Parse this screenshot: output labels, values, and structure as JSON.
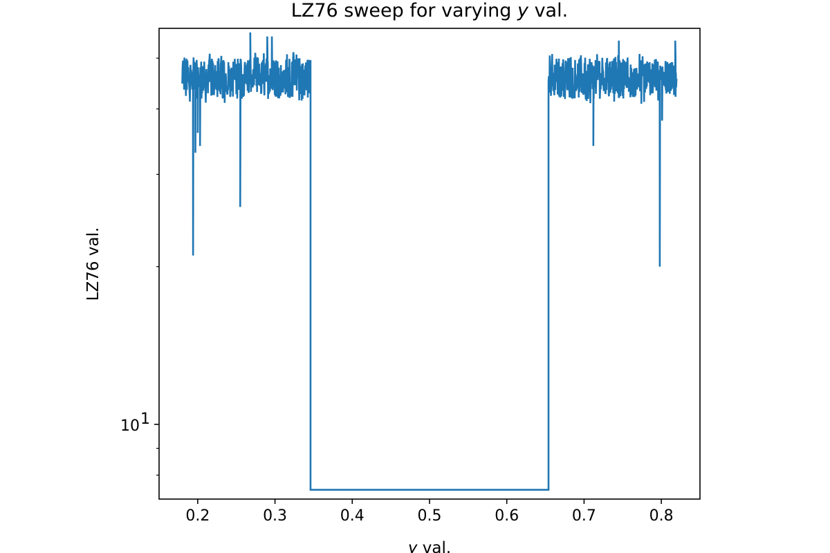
{
  "chart_data": {
    "type": "line",
    "title": "LZ76 sweep for varying y val.",
    "title_parts": {
      "before": "LZ76 sweep for varying ",
      "var": "y",
      "after": " val."
    },
    "xlabel": "y val.",
    "xlabel_parts": {
      "var": "y",
      "after": " val."
    },
    "ylabel": "LZ76 val.",
    "xlim": [
      0.15,
      0.85
    ],
    "ylim": [
      7.2,
      57
    ],
    "yscale": "log",
    "grid": false,
    "x_ticks": [
      0.2,
      0.3,
      0.4,
      0.5,
      0.6,
      0.7,
      0.8
    ],
    "x_tick_labels": [
      "0.2",
      "0.3",
      "0.4",
      "0.5",
      "0.6",
      "0.7",
      "0.8"
    ],
    "y_major_ticks": [
      10
    ],
    "y_major_tick_base": "10",
    "y_major_tick_exp": "1",
    "y_minor_ticks": [
      8,
      9,
      20,
      30,
      40,
      50
    ],
    "series": [
      {
        "color": "#1f77b4",
        "segments": [
          {
            "kind": "noisy",
            "x_start": 0.18,
            "x_end": 0.346,
            "typical_min": 40,
            "typical_max": 52
          },
          {
            "kind": "flat",
            "x_start": 0.346,
            "x_end": 0.654,
            "value": 7.5
          },
          {
            "kind": "noisy",
            "x_start": 0.654,
            "x_end": 0.82,
            "typical_min": 40,
            "typical_max": 52
          }
        ],
        "peaks": [
          {
            "x": 0.268,
            "y": 56
          },
          {
            "x": 0.29,
            "y": 55
          },
          {
            "x": 0.296,
            "y": 55
          },
          {
            "x": 0.818,
            "y": 54
          },
          {
            "x": 0.745,
            "y": 54
          }
        ],
        "dips": [
          {
            "x": 0.194,
            "y": 21
          },
          {
            "x": 0.197,
            "y": 33
          },
          {
            "x": 0.2,
            "y": 36
          },
          {
            "x": 0.203,
            "y": 34
          },
          {
            "x": 0.255,
            "y": 26
          },
          {
            "x": 0.712,
            "y": 34
          },
          {
            "x": 0.798,
            "y": 20
          },
          {
            "x": 0.801,
            "y": 38
          }
        ]
      }
    ]
  }
}
